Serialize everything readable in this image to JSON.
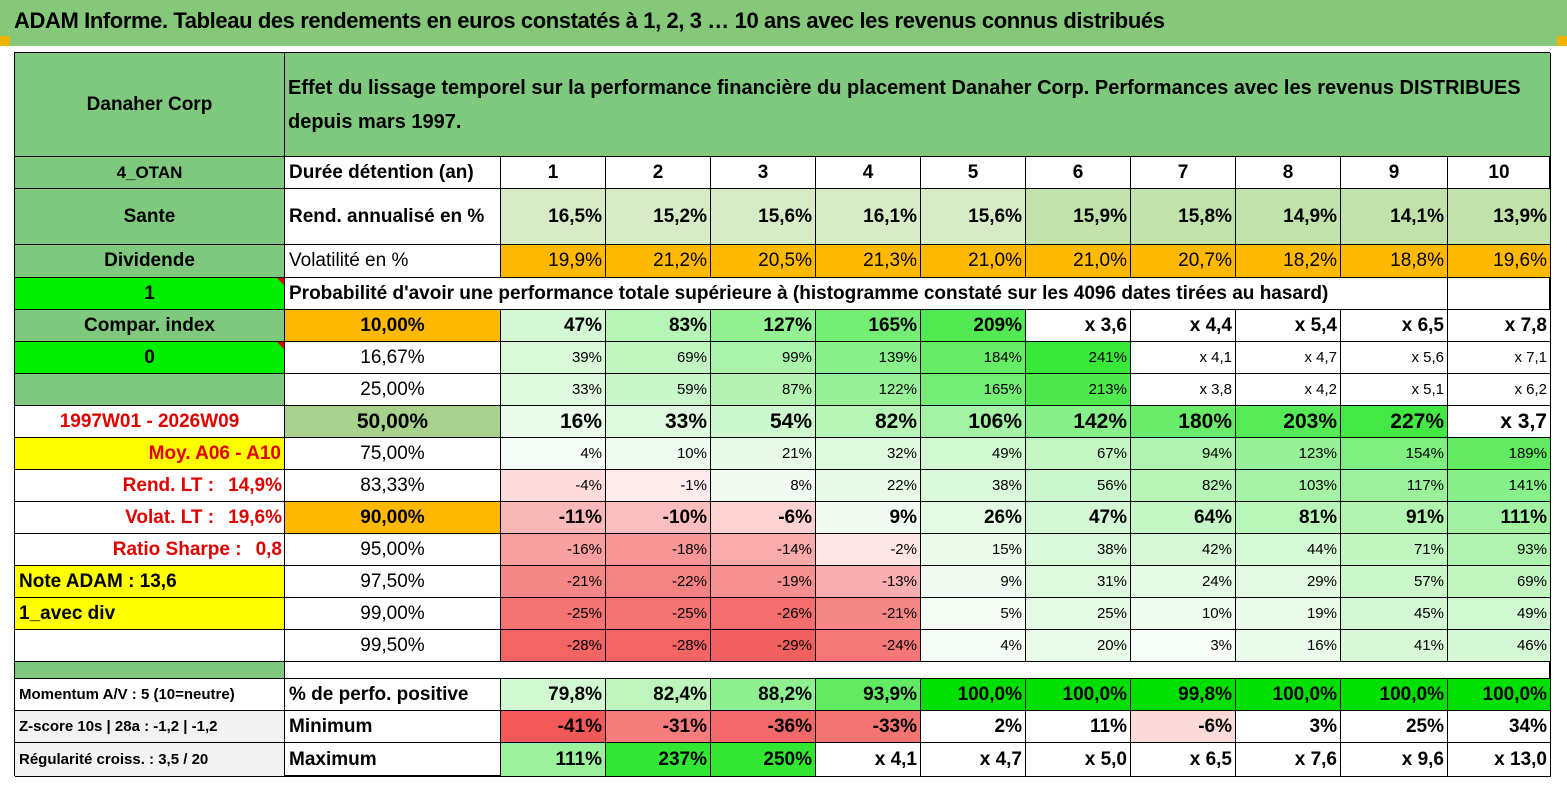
{
  "title": "ADAM Informe. Tableau des rendements en euros constatés à 1, 2, 3 … 10 ans avec les revenus connus distribués",
  "stock": {
    "name": "Danaher Corp",
    "header": "Effet du lissage temporel sur la performance financière du placement Danaher Corp. Performances avec les revenus DISTRIBUES depuis mars 1997."
  },
  "side": {
    "otan": "4_OTAN",
    "sector": "Sante",
    "dividend": "Dividende",
    "one": "1",
    "compar": "Compar. index",
    "zero": "0",
    "period": "1997W01 - 2026W09",
    "moy": "Moy. A06 - A10",
    "rend_lt_label": "Rend. LT :",
    "rend_lt_value": "14,9%",
    "volat_lt_label": "Volat. LT :",
    "volat_lt_value": "19,6%",
    "sharpe_label": "Ratio Sharpe :",
    "sharpe_value": "0,8",
    "note": "Note ADAM : 13,6",
    "avec_div": "1_avec div",
    "momentum": "Momentum A/V : 5 (10=neutre)",
    "zscore": "Z-score 10s | 28a : -1,2 | -1,2",
    "regularite": "Régularité croiss. : 3,5 / 20"
  },
  "rows": {
    "duration_label": "Durée détention (an)",
    "rend_label": "Rend. annualisé en %",
    "vol_label": "Volatilité en %",
    "prob_label": "Probabilité d'avoir une performance totale supérieure à (histogramme constaté sur les 4096 dates tirées au hasard)",
    "positive_label": "% de perfo. positive",
    "min_label": "Minimum",
    "max_label": "Maximum"
  },
  "years": [
    "1",
    "2",
    "3",
    "4",
    "5",
    "6",
    "7",
    "8",
    "9",
    "10"
  ],
  "rend": [
    "16,5%",
    "15,2%",
    "15,6%",
    "16,1%",
    "15,6%",
    "15,9%",
    "15,8%",
    "14,9%",
    "14,1%",
    "13,9%"
  ],
  "vol": [
    "19,9%",
    "21,2%",
    "20,5%",
    "21,3%",
    "21,0%",
    "21,0%",
    "20,7%",
    "18,2%",
    "18,8%",
    "19,6%"
  ],
  "prob_rows": [
    {
      "p": "10,00%",
      "vals": [
        "47%",
        "83%",
        "127%",
        "165%",
        "209%",
        "x 3,6",
        "x 4,4",
        "x 5,4",
        "x 6,5",
        "x 7,8"
      ]
    },
    {
      "p": "16,67%",
      "vals": [
        "39%",
        "69%",
        "99%",
        "139%",
        "184%",
        "241%",
        "x 4,1",
        "x 4,7",
        "x 5,6",
        "x 7,1"
      ]
    },
    {
      "p": "25,00%",
      "vals": [
        "33%",
        "59%",
        "87%",
        "122%",
        "165%",
        "213%",
        "x 3,8",
        "x 4,2",
        "x 5,1",
        "x 6,2"
      ]
    },
    {
      "p": "50,00%",
      "vals": [
        "16%",
        "33%",
        "54%",
        "82%",
        "106%",
        "142%",
        "180%",
        "203%",
        "227%",
        "x 3,7"
      ]
    },
    {
      "p": "75,00%",
      "vals": [
        "4%",
        "10%",
        "21%",
        "32%",
        "49%",
        "67%",
        "94%",
        "123%",
        "154%",
        "189%"
      ]
    },
    {
      "p": "83,33%",
      "vals": [
        "-4%",
        "-1%",
        "8%",
        "22%",
        "38%",
        "56%",
        "82%",
        "103%",
        "117%",
        "141%"
      ]
    },
    {
      "p": "90,00%",
      "vals": [
        "-11%",
        "-10%",
        "-6%",
        "9%",
        "26%",
        "47%",
        "64%",
        "81%",
        "91%",
        "111%"
      ]
    },
    {
      "p": "95,00%",
      "vals": [
        "-16%",
        "-18%",
        "-14%",
        "-2%",
        "15%",
        "38%",
        "42%",
        "44%",
        "71%",
        "93%"
      ]
    },
    {
      "p": "97,50%",
      "vals": [
        "-21%",
        "-22%",
        "-19%",
        "-13%",
        "9%",
        "31%",
        "24%",
        "29%",
        "57%",
        "69%"
      ]
    },
    {
      "p": "99,00%",
      "vals": [
        "-25%",
        "-25%",
        "-26%",
        "-21%",
        "5%",
        "25%",
        "10%",
        "19%",
        "45%",
        "49%"
      ]
    },
    {
      "p": "99,50%",
      "vals": [
        "-28%",
        "-28%",
        "-29%",
        "-24%",
        "4%",
        "20%",
        "3%",
        "16%",
        "41%",
        "46%"
      ]
    }
  ],
  "positive": [
    "79,8%",
    "82,4%",
    "88,2%",
    "93,9%",
    "100,0%",
    "100,0%",
    "99,8%",
    "100,0%",
    "100,0%",
    "100,0%"
  ],
  "minimum": [
    "-41%",
    "-31%",
    "-36%",
    "-33%",
    "2%",
    "11%",
    "-6%",
    "3%",
    "25%",
    "34%"
  ],
  "maximum": [
    "111%",
    "237%",
    "250%",
    "x 4,1",
    "x 4,7",
    "x 5,0",
    "x 6,5",
    "x 7,6",
    "x 9,6",
    "x 13,0"
  ],
  "colors": {
    "header_green": "#7fc97f",
    "title_bar": "#86c87a",
    "bright_green": "#00ee00",
    "orange": "#ffb900",
    "yellow": "#ffff00",
    "red_text": "#e00000"
  }
}
